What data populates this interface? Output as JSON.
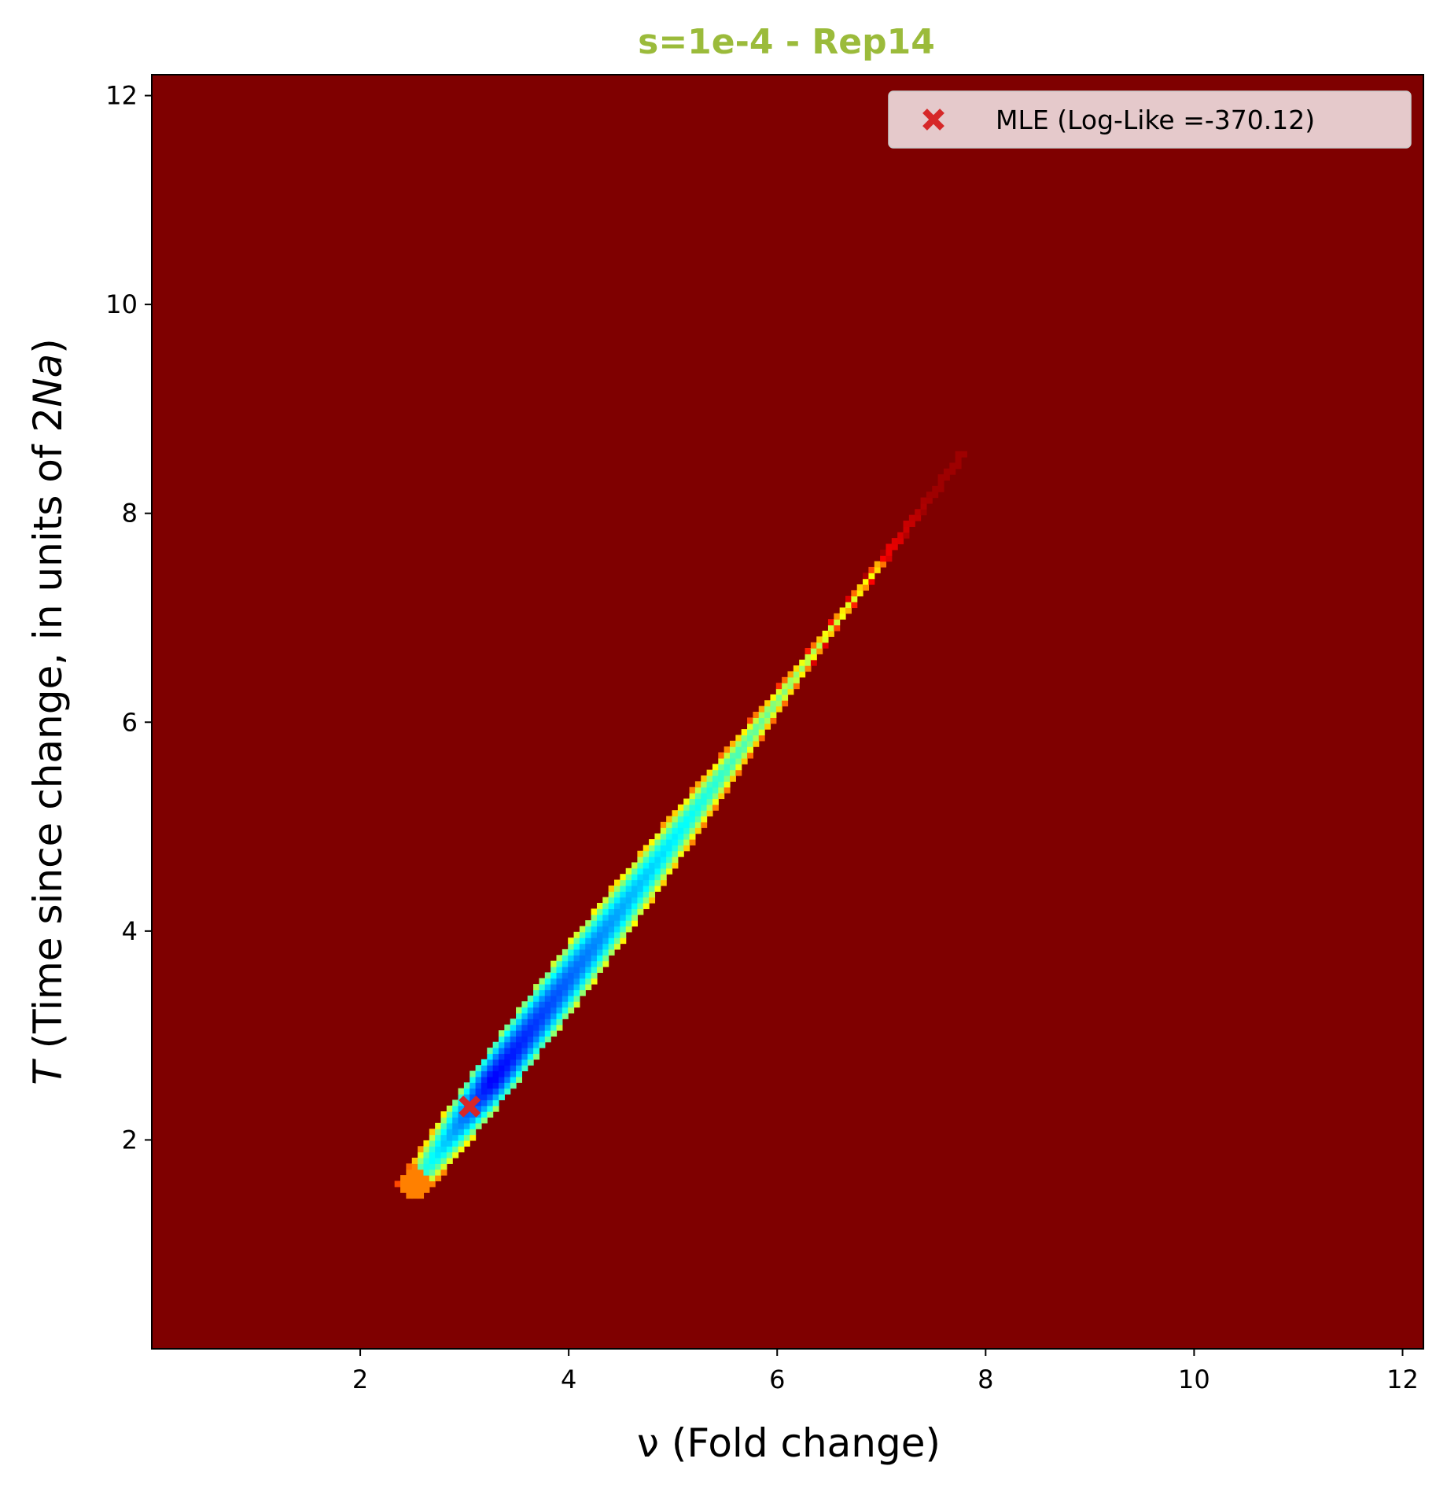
{
  "chart_data": {
    "type": "heatmap",
    "title": "s=1e-4 - Rep14",
    "title_color": "#9BBB3B",
    "xlabel": "ν (Fold change)",
    "ylabel_prefix": "T",
    "ylabel_main": " (Time since change, in units of 2",
    "ylabel_italic": "Na",
    "ylabel_suffix": ")",
    "xlim": [
      0.0,
      12.2
    ],
    "ylim": [
      0.0,
      12.2
    ],
    "xticks": [
      2,
      4,
      6,
      8,
      10,
      12
    ],
    "yticks": [
      2,
      4,
      6,
      8,
      10,
      12
    ],
    "xtick_labels": [
      "2",
      "4",
      "6",
      "8",
      "10",
      "12"
    ],
    "ytick_labels": [
      "2",
      "4",
      "6",
      "8",
      "10",
      "12"
    ],
    "colormap": "jet",
    "background_color": "#7F0000",
    "likelihood_ridge": {
      "start": [
        2.5,
        1.55
      ],
      "end": [
        7.8,
        8.6
      ],
      "peak": [
        3.2,
        2.6
      ],
      "extent_note": "high-likelihood ridge running from lower-left to upper-right"
    },
    "mle_point": {
      "x": 3.05,
      "y": 2.32,
      "color": "#D62728",
      "marker": "x"
    },
    "legend": {
      "position": "upper right",
      "entries": [
        {
          "label": "MLE (Log-Like =-370.12)",
          "marker": "x",
          "color": "#D62728"
        }
      ]
    },
    "grid": false
  }
}
